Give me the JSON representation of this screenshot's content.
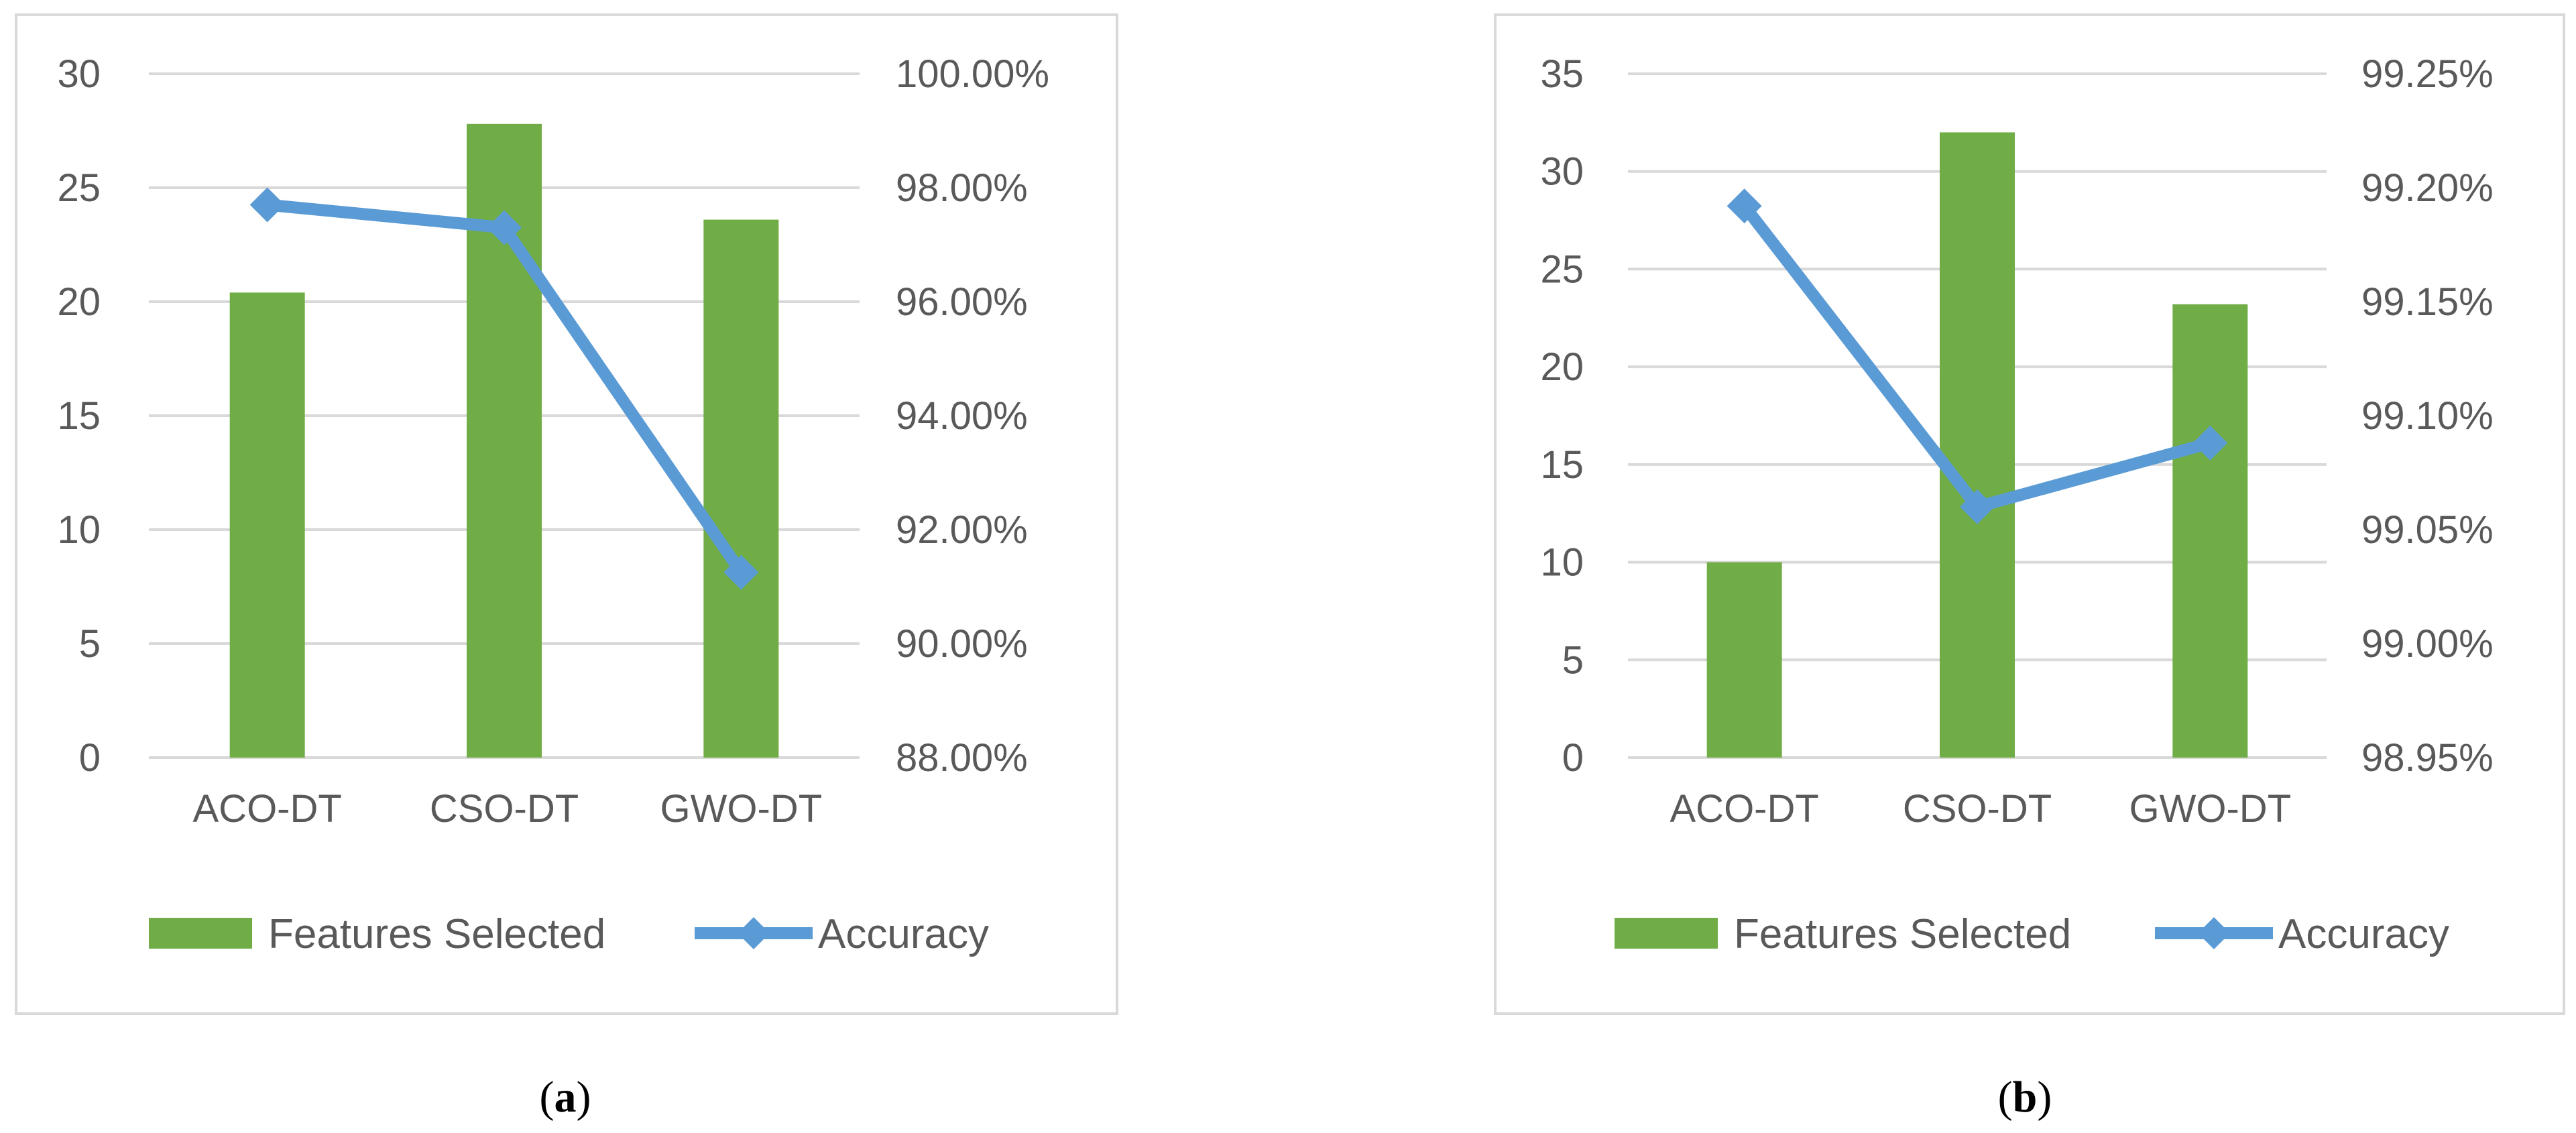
{
  "colors": {
    "bar": "#70ad47",
    "line": "#5b9bd5",
    "grid": "#d9d9d9",
    "frame": "#d9d9d9",
    "text": "#595959"
  },
  "chart_data": [
    {
      "type": "bar",
      "caption_letter": "a",
      "categories": [
        "ACO-DT",
        "CSO-DT",
        "GWO-DT"
      ],
      "series": [
        {
          "name": "Features Selected",
          "type": "bar",
          "axis": "left",
          "values": [
            20.4,
            27.8,
            23.6
          ]
        },
        {
          "name": "Accuracy",
          "type": "line",
          "marker": "diamond",
          "axis": "right",
          "values": [
            0.977,
            0.973,
            0.9125
          ]
        }
      ],
      "y_left": {
        "min": 0,
        "max": 30,
        "step": 5,
        "ticks": [
          "0",
          "5",
          "10",
          "15",
          "20",
          "25",
          "30"
        ]
      },
      "y_right": {
        "min": 0.88,
        "max": 1.0,
        "step": 0.02,
        "ticks": [
          "88.00%",
          "90.00%",
          "92.00%",
          "94.00%",
          "96.00%",
          "98.00%",
          "100.00%"
        ]
      },
      "grid": true,
      "legend_position": "bottom"
    },
    {
      "type": "bar",
      "caption_letter": "b",
      "categories": [
        "ACO-DT",
        "CSO-DT",
        "GWO-DT"
      ],
      "series": [
        {
          "name": "Features Selected",
          "type": "bar",
          "axis": "left",
          "values": [
            10,
            32,
            23.2
          ]
        },
        {
          "name": "Accuracy",
          "type": "line",
          "marker": "diamond",
          "axis": "right",
          "values": [
            0.99192,
            0.9906,
            0.99088
          ]
        }
      ],
      "y_left": {
        "min": 0,
        "max": 35,
        "step": 5,
        "ticks": [
          "0",
          "5",
          "10",
          "15",
          "20",
          "25",
          "30",
          "35"
        ]
      },
      "y_right": {
        "min": 0.9895,
        "max": 0.9925,
        "step": 0.0005,
        "ticks": [
          "98.95%",
          "99.00%",
          "99.05%",
          "99.10%",
          "99.15%",
          "99.20%",
          "99.25%"
        ]
      },
      "grid": true,
      "legend_position": "bottom"
    }
  ]
}
